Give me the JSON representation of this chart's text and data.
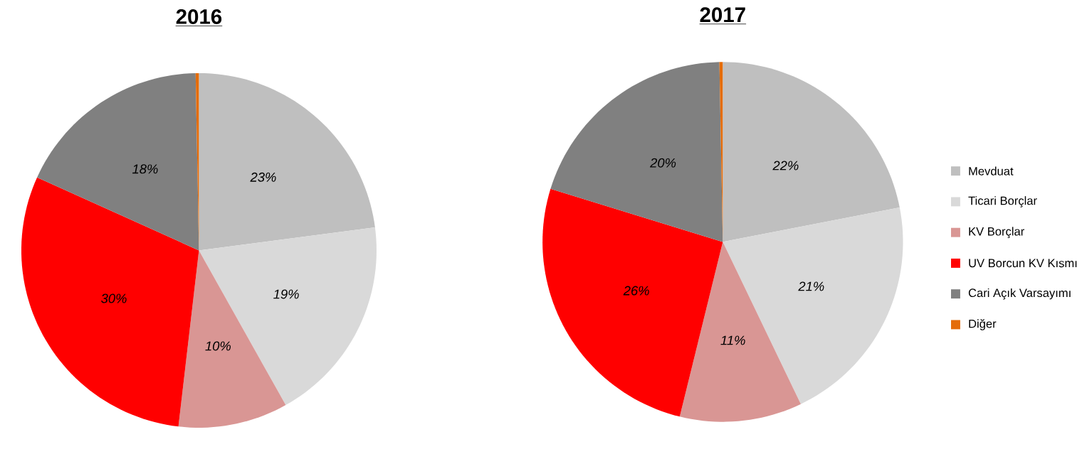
{
  "chart_data": {
    "type": "pie",
    "categories": [
      "Mevduat",
      "Ticari Borçlar",
      "KV Borçlar",
      "UV Borcun KV Kısmı",
      "Cari Açık Varsayımı",
      "Diğer"
    ],
    "colors": [
      "#bfbfbf",
      "#d9d9d9",
      "#d99694",
      "#ff0000",
      "#808080",
      "#e46c0a"
    ],
    "legend": "right",
    "series": [
      {
        "name": "2016",
        "values": [
          23,
          19,
          10,
          30,
          18,
          0.3
        ],
        "value_labels": [
          "23%",
          "19%",
          "10%",
          "30%",
          "18%",
          null
        ]
      },
      {
        "name": "2017",
        "values": [
          22,
          21,
          11,
          26,
          20,
          0.3
        ],
        "value_labels": [
          "22%",
          "21%",
          "11%",
          "26%",
          "20%",
          null
        ]
      }
    ]
  }
}
